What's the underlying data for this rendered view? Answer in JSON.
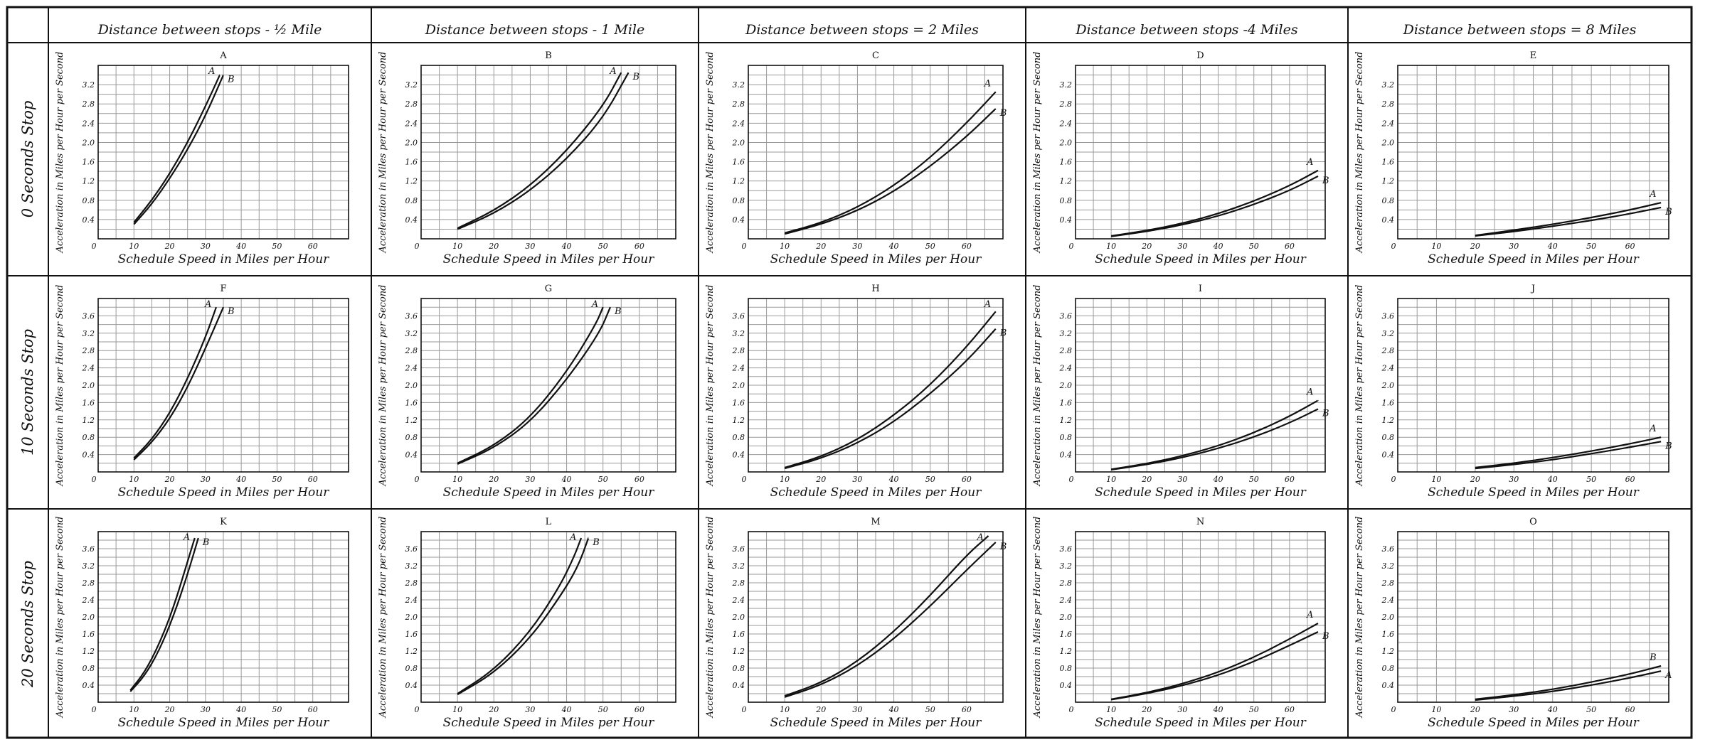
{
  "columns": [
    "Distance between stops - ½ Mile",
    "Distance between stops - 1 Mile",
    "Distance between stops = 2 Miles",
    "Distance between stops -4 Miles",
    "Distance between stops = 8 Miles"
  ],
  "rows": [
    "0 Seconds Stop",
    "10 Seconds Stop",
    "20 Seconds Stop"
  ],
  "axis": {
    "xlabel": "Schedule Speed in Miles per Hour",
    "ylabel": "Acceleration in Miles per Hour per Second"
  },
  "chart_data": [
    {
      "id": "A",
      "type": "line",
      "title": "A",
      "xlim": [
        0,
        70
      ],
      "ylim": [
        0,
        3.6
      ],
      "xticks": [
        10,
        20,
        30,
        40,
        50,
        60
      ],
      "yticks": [
        0.4,
        0.8,
        1.2,
        1.6,
        2.0,
        2.4,
        2.8,
        3.2
      ],
      "series": [
        {
          "name": "A",
          "x": [
            10,
            15,
            20,
            25,
            30,
            34
          ],
          "y": [
            0.34,
            0.8,
            1.35,
            2.0,
            2.75,
            3.4
          ]
        },
        {
          "name": "B",
          "x": [
            10,
            15,
            20,
            25,
            30,
            35
          ],
          "y": [
            0.3,
            0.72,
            1.25,
            1.85,
            2.55,
            3.4
          ]
        }
      ]
    },
    {
      "id": "B",
      "type": "line",
      "title": "B",
      "xlim": [
        0,
        70
      ],
      "ylim": [
        0,
        3.6
      ],
      "xticks": [
        10,
        20,
        30,
        40,
        50,
        60
      ],
      "yticks": [
        0.4,
        0.8,
        1.2,
        1.6,
        2.0,
        2.4,
        2.8,
        3.2
      ],
      "series": [
        {
          "name": "A",
          "x": [
            10,
            20,
            30,
            40,
            50,
            55
          ],
          "y": [
            0.22,
            0.58,
            1.1,
            1.82,
            2.75,
            3.45
          ]
        },
        {
          "name": "B",
          "x": [
            10,
            20,
            30,
            40,
            50,
            57
          ],
          "y": [
            0.2,
            0.52,
            1.0,
            1.65,
            2.5,
            3.45
          ]
        }
      ]
    },
    {
      "id": "C",
      "type": "line",
      "title": "C",
      "xlim": [
        0,
        70
      ],
      "ylim": [
        0,
        3.6
      ],
      "xticks": [
        10,
        20,
        30,
        40,
        50,
        60
      ],
      "yticks": [
        0.4,
        0.8,
        1.2,
        1.6,
        2.0,
        2.4,
        2.8,
        3.2
      ],
      "series": [
        {
          "name": "A",
          "x": [
            10,
            20,
            30,
            40,
            50,
            60,
            68
          ],
          "y": [
            0.12,
            0.33,
            0.65,
            1.1,
            1.68,
            2.4,
            3.05
          ]
        },
        {
          "name": "B",
          "x": [
            10,
            20,
            30,
            40,
            50,
            60,
            68
          ],
          "y": [
            0.1,
            0.3,
            0.58,
            0.98,
            1.5,
            2.12,
            2.7
          ]
        }
      ]
    },
    {
      "id": "D",
      "type": "line",
      "title": "D",
      "xlim": [
        0,
        70
      ],
      "ylim": [
        0,
        3.6
      ],
      "xticks": [
        10,
        20,
        30,
        40,
        50,
        60
      ],
      "yticks": [
        0.4,
        0.8,
        1.2,
        1.6,
        2.0,
        2.4,
        2.8,
        3.2
      ],
      "series": [
        {
          "name": "A",
          "x": [
            10,
            20,
            30,
            40,
            50,
            60,
            68
          ],
          "y": [
            0.06,
            0.17,
            0.32,
            0.52,
            0.78,
            1.1,
            1.42
          ]
        },
        {
          "name": "B",
          "x": [
            10,
            20,
            30,
            40,
            50,
            60,
            68
          ],
          "y": [
            0.05,
            0.15,
            0.29,
            0.47,
            0.71,
            1.0,
            1.3
          ]
        }
      ]
    },
    {
      "id": "E",
      "type": "line",
      "title": "E",
      "xlim": [
        0,
        70
      ],
      "ylim": [
        0,
        3.6
      ],
      "xticks": [
        10,
        20,
        30,
        40,
        50,
        60
      ],
      "yticks": [
        0.4,
        0.8,
        1.2,
        1.6,
        2.0,
        2.4,
        2.8,
        3.2
      ],
      "series": [
        {
          "name": "A",
          "x": [
            20,
            30,
            40,
            50,
            60,
            68
          ],
          "y": [
            0.07,
            0.18,
            0.3,
            0.44,
            0.6,
            0.75
          ]
        },
        {
          "name": "B",
          "x": [
            20,
            30,
            40,
            50,
            60,
            68
          ],
          "y": [
            0.06,
            0.15,
            0.26,
            0.38,
            0.52,
            0.65
          ]
        }
      ]
    },
    {
      "id": "F",
      "type": "line",
      "title": "F",
      "xlim": [
        0,
        70
      ],
      "ylim": [
        0,
        4.0
      ],
      "xticks": [
        10,
        20,
        30,
        40,
        50,
        60
      ],
      "yticks": [
        0.4,
        0.8,
        1.2,
        1.6,
        2.0,
        2.4,
        2.8,
        3.2,
        3.6
      ],
      "series": [
        {
          "name": "A",
          "x": [
            10,
            15,
            20,
            25,
            30,
            33
          ],
          "y": [
            0.32,
            0.75,
            1.35,
            2.15,
            3.1,
            3.8
          ]
        },
        {
          "name": "B",
          "x": [
            10,
            15,
            20,
            25,
            30,
            35
          ],
          "y": [
            0.28,
            0.68,
            1.22,
            1.95,
            2.85,
            3.8
          ]
        }
      ]
    },
    {
      "id": "G",
      "type": "line",
      "title": "G",
      "xlim": [
        0,
        70
      ],
      "ylim": [
        0,
        4.0
      ],
      "xticks": [
        10,
        20,
        30,
        40,
        50,
        60
      ],
      "yticks": [
        0.4,
        0.8,
        1.2,
        1.6,
        2.0,
        2.4,
        2.8,
        3.2,
        3.6
      ],
      "series": [
        {
          "name": "A",
          "x": [
            10,
            20,
            30,
            40,
            48,
            50
          ],
          "y": [
            0.2,
            0.6,
            1.25,
            2.3,
            3.4,
            3.8
          ]
        },
        {
          "name": "B",
          "x": [
            10,
            20,
            30,
            40,
            49,
            52
          ],
          "y": [
            0.18,
            0.55,
            1.15,
            2.12,
            3.2,
            3.8
          ]
        }
      ]
    },
    {
      "id": "H",
      "type": "line",
      "title": "H",
      "xlim": [
        0,
        70
      ],
      "ylim": [
        0,
        4.0
      ],
      "xticks": [
        10,
        20,
        30,
        40,
        50,
        60
      ],
      "yticks": [
        0.4,
        0.8,
        1.2,
        1.6,
        2.0,
        2.4,
        2.8,
        3.2,
        3.6
      ],
      "series": [
        {
          "name": "A",
          "x": [
            10,
            20,
            30,
            40,
            50,
            60,
            68
          ],
          "y": [
            0.1,
            0.35,
            0.74,
            1.3,
            2.0,
            2.88,
            3.7
          ]
        },
        {
          "name": "B",
          "x": [
            10,
            20,
            30,
            40,
            50,
            60,
            68
          ],
          "y": [
            0.08,
            0.31,
            0.66,
            1.15,
            1.8,
            2.55,
            3.3
          ]
        }
      ]
    },
    {
      "id": "I",
      "type": "line",
      "title": "I",
      "xlim": [
        0,
        70
      ],
      "ylim": [
        0,
        4.0
      ],
      "xticks": [
        10,
        20,
        30,
        40,
        50,
        60
      ],
      "yticks": [
        0.4,
        0.8,
        1.2,
        1.6,
        2.0,
        2.4,
        2.8,
        3.2,
        3.6
      ],
      "series": [
        {
          "name": "A",
          "x": [
            10,
            20,
            30,
            40,
            50,
            60,
            68
          ],
          "y": [
            0.06,
            0.19,
            0.37,
            0.6,
            0.9,
            1.28,
            1.65
          ]
        },
        {
          "name": "B",
          "x": [
            10,
            20,
            30,
            40,
            50,
            60,
            68
          ],
          "y": [
            0.05,
            0.17,
            0.33,
            0.54,
            0.8,
            1.13,
            1.45
          ]
        }
      ]
    },
    {
      "id": "J",
      "type": "line",
      "title": "J",
      "xlim": [
        0,
        70
      ],
      "ylim": [
        0,
        4.0
      ],
      "xticks": [
        10,
        20,
        30,
        40,
        50,
        60
      ],
      "yticks": [
        0.4,
        0.8,
        1.2,
        1.6,
        2.0,
        2.4,
        2.8,
        3.2,
        3.6
      ],
      "series": [
        {
          "name": "A",
          "x": [
            20,
            30,
            40,
            50,
            60,
            68
          ],
          "y": [
            0.1,
            0.2,
            0.33,
            0.48,
            0.65,
            0.8
          ]
        },
        {
          "name": "B",
          "x": [
            20,
            30,
            40,
            50,
            60,
            68
          ],
          "y": [
            0.08,
            0.17,
            0.28,
            0.42,
            0.57,
            0.7
          ]
        }
      ]
    },
    {
      "id": "K",
      "type": "line",
      "title": "K",
      "xlim": [
        0,
        70
      ],
      "ylim": [
        0,
        4.0
      ],
      "xticks": [
        10,
        20,
        30,
        40,
        50,
        60
      ],
      "yticks": [
        0.4,
        0.8,
        1.2,
        1.6,
        2.0,
        2.4,
        2.8,
        3.2,
        3.6
      ],
      "series": [
        {
          "name": "A",
          "x": [
            9,
            13,
            17,
            21,
            25,
            27
          ],
          "y": [
            0.28,
            0.7,
            1.35,
            2.2,
            3.3,
            3.85
          ]
        },
        {
          "name": "B",
          "x": [
            9,
            13,
            17,
            21,
            25,
            28
          ],
          "y": [
            0.25,
            0.62,
            1.2,
            2.0,
            3.0,
            3.85
          ]
        }
      ]
    },
    {
      "id": "L",
      "type": "line",
      "title": "L",
      "xlim": [
        0,
        70
      ],
      "ylim": [
        0,
        4.0
      ],
      "xticks": [
        10,
        20,
        30,
        40,
        50,
        60
      ],
      "yticks": [
        0.4,
        0.8,
        1.2,
        1.6,
        2.0,
        2.4,
        2.8,
        3.2,
        3.6
      ],
      "series": [
        {
          "name": "A",
          "x": [
            10,
            20,
            30,
            38,
            42,
            44
          ],
          "y": [
            0.2,
            0.75,
            1.65,
            2.7,
            3.4,
            3.85
          ]
        },
        {
          "name": "B",
          "x": [
            10,
            20,
            30,
            38,
            43,
            46
          ],
          "y": [
            0.18,
            0.68,
            1.5,
            2.45,
            3.15,
            3.85
          ]
        }
      ]
    },
    {
      "id": "M",
      "type": "line",
      "title": "M",
      "xlim": [
        0,
        70
      ],
      "ylim": [
        0,
        4.0
      ],
      "xticks": [
        10,
        20,
        30,
        40,
        50,
        60
      ],
      "yticks": [
        0.4,
        0.8,
        1.2,
        1.6,
        2.0,
        2.4,
        2.8,
        3.2,
        3.6
      ],
      "series": [
        {
          "name": "A",
          "x": [
            10,
            20,
            30,
            40,
            50,
            60,
            66
          ],
          "y": [
            0.15,
            0.45,
            0.95,
            1.65,
            2.5,
            3.45,
            3.9
          ]
        },
        {
          "name": "B",
          "x": [
            10,
            20,
            30,
            40,
            50,
            60,
            68
          ],
          "y": [
            0.12,
            0.4,
            0.85,
            1.48,
            2.25,
            3.1,
            3.75
          ]
        }
      ]
    },
    {
      "id": "N",
      "type": "line",
      "title": "N",
      "xlim": [
        0,
        70
      ],
      "ylim": [
        0,
        4.0
      ],
      "xticks": [
        10,
        20,
        30,
        40,
        50,
        60
      ],
      "yticks": [
        0.4,
        0.8,
        1.2,
        1.6,
        2.0,
        2.4,
        2.8,
        3.2,
        3.6
      ],
      "series": [
        {
          "name": "A",
          "x": [
            10,
            20,
            30,
            40,
            50,
            60,
            68
          ],
          "y": [
            0.07,
            0.22,
            0.43,
            0.7,
            1.05,
            1.48,
            1.85
          ]
        },
        {
          "name": "B",
          "x": [
            10,
            20,
            30,
            40,
            50,
            60,
            68
          ],
          "y": [
            0.06,
            0.2,
            0.39,
            0.63,
            0.95,
            1.33,
            1.65
          ]
        }
      ]
    },
    {
      "id": "O",
      "type": "line",
      "title": "O",
      "xlim": [
        0,
        70
      ],
      "ylim": [
        0,
        4.0
      ],
      "xticks": [
        10,
        20,
        30,
        40,
        50,
        60
      ],
      "yticks": [
        0.4,
        0.8,
        1.2,
        1.6,
        2.0,
        2.4,
        2.8,
        3.2,
        3.6
      ],
      "series": [
        {
          "name": "B",
          "x": [
            20,
            30,
            40,
            50,
            60,
            68
          ],
          "y": [
            0.07,
            0.17,
            0.3,
            0.47,
            0.66,
            0.85
          ]
        },
        {
          "name": "A",
          "x": [
            20,
            30,
            40,
            50,
            60,
            68
          ],
          "y": [
            0.05,
            0.14,
            0.25,
            0.4,
            0.57,
            0.73
          ]
        }
      ]
    }
  ]
}
